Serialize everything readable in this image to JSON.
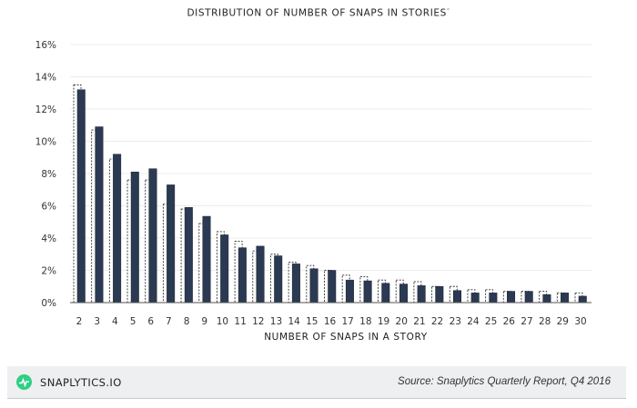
{
  "chart_data": {
    "type": "bar",
    "title": "DISTRIBUTION OF NUMBER OF SNAPS IN STORIES",
    "title_footnote_mark": "*",
    "xlabel": "NUMBER OF SNAPS IN A STORY",
    "ylabel": "",
    "ylim": [
      0,
      16
    ],
    "yticks": [
      "0%",
      "2%",
      "4%",
      "6%",
      "8%",
      "10%",
      "12%",
      "14%",
      "16%"
    ],
    "grid": true,
    "categories": [
      "2",
      "3",
      "4",
      "5",
      "6",
      "7",
      "8",
      "9",
      "10",
      "11",
      "12",
      "13",
      "14",
      "15",
      "16",
      "17",
      "18",
      "19",
      "20",
      "21",
      "22",
      "23",
      "24",
      "25",
      "26",
      "27",
      "28",
      "29",
      "30"
    ],
    "series": [
      {
        "style": "dashed-outline",
        "values": [
          13.5,
          10.7,
          8.9,
          7.6,
          7.6,
          6.1,
          5.8,
          4.9,
          4.4,
          3.8,
          3.2,
          3.0,
          2.5,
          2.3,
          2.0,
          1.7,
          1.6,
          1.4,
          1.4,
          1.3,
          1.0,
          1.0,
          0.8,
          0.8,
          0.7,
          0.7,
          0.7,
          0.6,
          0.6
        ]
      },
      {
        "style": "solid",
        "color": "#2b3a52",
        "values": [
          13.2,
          10.9,
          9.2,
          8.1,
          8.3,
          7.3,
          5.9,
          5.35,
          4.2,
          3.4,
          3.5,
          2.9,
          2.4,
          2.1,
          2.0,
          1.4,
          1.35,
          1.2,
          1.15,
          1.05,
          1.0,
          0.75,
          0.6,
          0.6,
          0.7,
          0.7,
          0.5,
          0.6,
          0.4
        ]
      }
    ]
  },
  "footer": {
    "brand": "SNAPLYTICS.IO",
    "logo_color": "#2fcf85",
    "logo_icon": "pulse-icon",
    "source": "Source: Snaplytics Quarterly Report, Q4 2016"
  }
}
